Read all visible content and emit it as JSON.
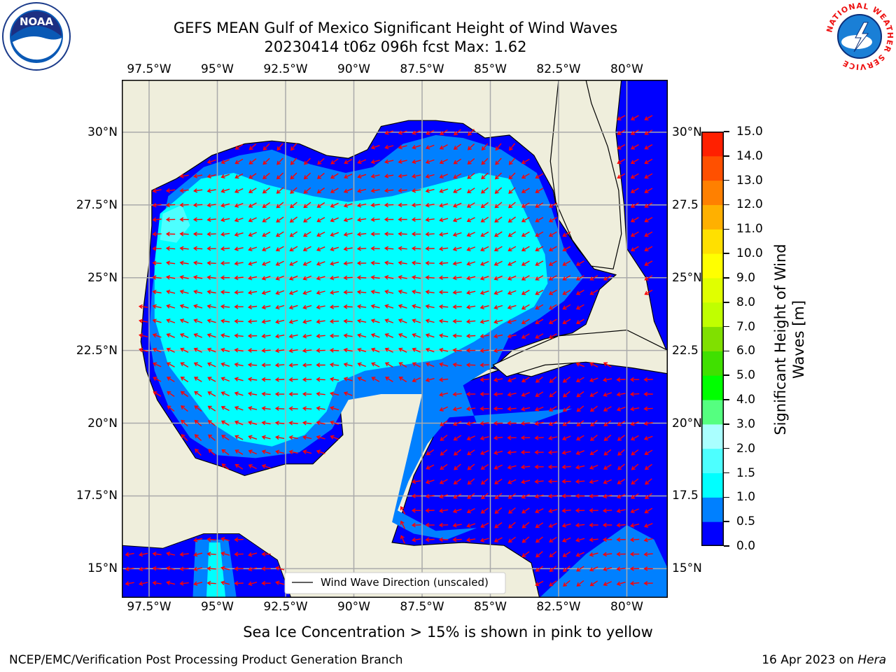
{
  "title": {
    "line1": "GEFS MEAN Gulf of Mexico Significant Height of Wind Waves",
    "line2": "20230414 t06z 096h fcst   Max: 1.62"
  },
  "map": {
    "lon_range": [
      -98.5,
      -78.5
    ],
    "lat_range": [
      14.0,
      31.8
    ],
    "lon_ticks": [
      {
        "value": -97.5,
        "label": "97.5°W"
      },
      {
        "value": -95.0,
        "label": "95°W"
      },
      {
        "value": -92.5,
        "label": "92.5°W"
      },
      {
        "value": -90.0,
        "label": "90°W"
      },
      {
        "value": -87.5,
        "label": "87.5°W"
      },
      {
        "value": -85.0,
        "label": "85°W"
      },
      {
        "value": -82.5,
        "label": "82.5°W"
      },
      {
        "value": -80.0,
        "label": "80°W"
      }
    ],
    "lat_ticks": [
      {
        "value": 30.0,
        "label": "30°N",
        "label_right": "30°N"
      },
      {
        "value": 27.5,
        "label": "27.5°N",
        "label_right": "27.5"
      },
      {
        "value": 25.0,
        "label": "25°N",
        "label_right": "25°N"
      },
      {
        "value": 22.5,
        "label": "22.5°N",
        "label_right": "22.5"
      },
      {
        "value": 20.0,
        "label": "20°N",
        "label_right": "20°N"
      },
      {
        "value": 17.5,
        "label": "17.5°N",
        "label_right": "17.5"
      },
      {
        "value": 15.0,
        "label": "15°N",
        "label_right": "15°N"
      }
    ],
    "grid": true,
    "colors": {
      "land": "#efeedc",
      "ocean_low": "#0000ff",
      "ocean_mid": "#0080ff",
      "ocean_high": "#00ffff",
      "ocean_peak": "#4dffff",
      "arrow": "#ff0000",
      "grid": "#aaaaaa",
      "coast": "#000000"
    }
  },
  "legend": {
    "label": "Wind Wave Direction (unscaled)",
    "position": "bottom-center"
  },
  "colorbar": {
    "label_line1": "Significant Height of Wind",
    "label_line2": "Waves [m]",
    "ticks": [
      "0.0",
      "0.5",
      "1.0",
      "1.5",
      "2.0",
      "3.0",
      "4.0",
      "5.0",
      "6.0",
      "7.0",
      "8.0",
      "9.0",
      "10.0",
      "11.0",
      "12.0",
      "13.0",
      "14.0",
      "15.0"
    ],
    "colors": [
      "#0000ff",
      "#0080ff",
      "#00ffff",
      "#4dffff",
      "#aaffff",
      "#55ff80",
      "#00ff00",
      "#40e000",
      "#80e000",
      "#c0ff00",
      "#e0ff00",
      "#ffff00",
      "#ffe000",
      "#ffb000",
      "#ff8000",
      "#ff5000",
      "#ff2000"
    ]
  },
  "note": "Sea Ice Concentration > 15% is shown in pink to yellow",
  "footer": {
    "left": "NCEP/EMC/Verification Post Processing Product Generation Branch",
    "right_prefix": "16 Apr 2023 on ",
    "right_host": "Hera"
  },
  "logos": {
    "left": {
      "icon": "noaa-logo-icon",
      "text": "NOAA"
    },
    "right": {
      "icon": "nws-logo-icon",
      "ring_text": "NATIONAL WEATHER SERVICE"
    }
  }
}
